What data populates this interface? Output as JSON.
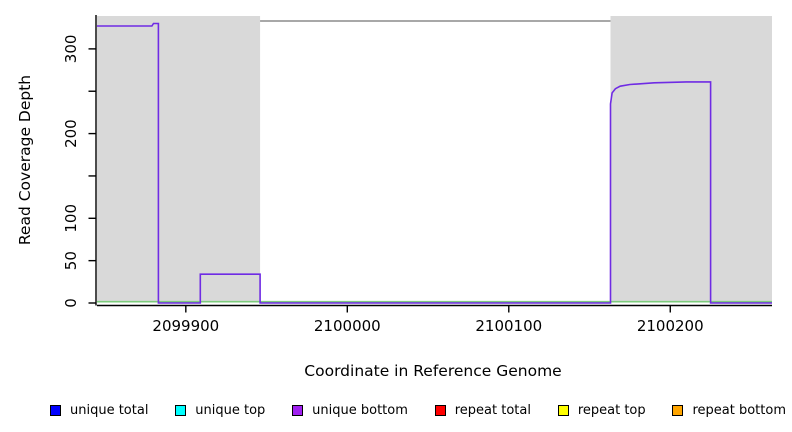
{
  "chart_data": {
    "type": "line",
    "title": "",
    "xlabel": "Coordinate in Reference Genome",
    "ylabel": "Read Coverage Depth",
    "xlim": [
      2099845,
      2100263
    ],
    "ylim": [
      0,
      340
    ],
    "grid": false,
    "legend_position": "bottom",
    "x_ticks": [
      {
        "v": 2099900,
        "label": "2099900"
      },
      {
        "v": 2100000,
        "label": "2100000"
      },
      {
        "v": 2100100,
        "label": "2100100"
      },
      {
        "v": 2100200,
        "label": "2100200"
      }
    ],
    "y_ticks": [
      {
        "v": 0,
        "label": "0"
      },
      {
        "v": 50,
        "label": "50"
      },
      {
        "v": 100,
        "label": "100"
      },
      {
        "v": 150,
        "label": ""
      },
      {
        "v": 200,
        "label": "200"
      },
      {
        "v": 250,
        "label": ""
      },
      {
        "v": 300,
        "label": "300"
      }
    ],
    "shaded_regions": [
      {
        "x0": 2099845,
        "x1": 2099946
      },
      {
        "x0": 2100163,
        "x1": 2100263
      }
    ],
    "shade_color": "#D9D9D9",
    "frame_top_color": "#8C8C8C",
    "axis_color": "#000000",
    "series": [
      {
        "name": "baseline",
        "color": "#7CCB7C",
        "points": [
          [
            2099845,
            1.5
          ],
          [
            2100263,
            1.5
          ]
        ]
      },
      {
        "name": "unique bottom coverage",
        "color": "#6F2BE4",
        "points": [
          [
            2099845,
            327
          ],
          [
            2099879,
            327
          ],
          [
            2099880,
            330
          ],
          [
            2099883,
            330
          ],
          [
            2099883,
            0
          ],
          [
            2099909,
            0
          ],
          [
            2099909,
            34
          ],
          [
            2099946,
            34
          ],
          [
            2099946,
            0
          ],
          [
            2100163,
            0
          ],
          [
            2100163,
            235
          ],
          [
            2100164,
            248
          ],
          [
            2100166,
            253
          ],
          [
            2100169,
            256
          ],
          [
            2100175,
            258
          ],
          [
            2100190,
            260
          ],
          [
            2100210,
            261
          ],
          [
            2100225,
            261
          ],
          [
            2100225,
            0
          ],
          [
            2100263,
            0
          ]
        ]
      }
    ],
    "legend": [
      {
        "label": "unique total",
        "color": "#0000FF"
      },
      {
        "label": "unique top",
        "color": "#00FFFF"
      },
      {
        "label": "unique bottom",
        "color": "#A020F0"
      },
      {
        "label": "repeat total",
        "color": "#FF0000"
      },
      {
        "label": "repeat top",
        "color": "#FFFF00"
      },
      {
        "label": "repeat bottom",
        "color": "#FFA500"
      }
    ]
  }
}
